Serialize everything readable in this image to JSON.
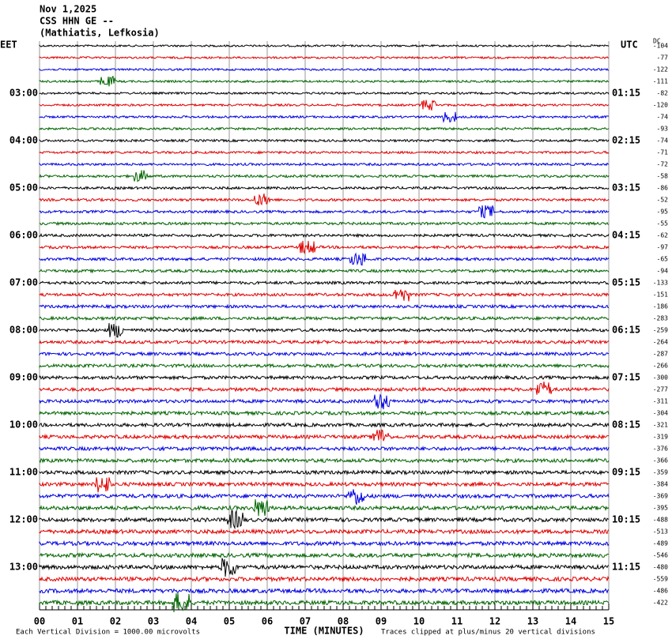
{
  "header": {
    "date": "Nov 1,2025",
    "station": "CSS HHN GE --",
    "location": "(Mathiatis, Lefkosia)"
  },
  "left_label": "EET",
  "right_label": "UTC",
  "dc_label": "DC",
  "eet_hours": [
    "03:00",
    "04:00",
    "05:00",
    "06:00",
    "07:00",
    "08:00",
    "09:00",
    "10:00",
    "11:00",
    "12:00",
    "13:00"
  ],
  "utc_hours": [
    "01:15",
    "02:15",
    "03:15",
    "04:15",
    "05:15",
    "06:15",
    "07:15",
    "08:15",
    "09:15",
    "10:15",
    "11:15"
  ],
  "dc_offsets": [
    -104,
    -77,
    -122,
    -111,
    -82,
    -120,
    -74,
    -93,
    -74,
    -71,
    -72,
    -58,
    -86,
    -52,
    -95,
    -55,
    -62,
    -97,
    -65,
    -94,
    -133,
    -151,
    -186,
    -283,
    -259,
    -264,
    -287,
    -266,
    -300,
    -277,
    -311,
    -304,
    -321,
    -319,
    -376,
    -366,
    -359,
    -384,
    -369,
    -395,
    -488,
    -513,
    -489,
    -546,
    -480,
    -559,
    -486,
    -422
  ],
  "x_ticks": [
    "00",
    "01",
    "02",
    "03",
    "04",
    "05",
    "06",
    "07",
    "08",
    "09",
    "10",
    "11",
    "12",
    "13",
    "14",
    "15"
  ],
  "x_axis_title": "TIME (MINUTES)",
  "footer_left": "Each Vertical Division = 1000.00 microvolts",
  "footer_right": "Traces clipped at plus/minus 20 vertical divisions"
}
